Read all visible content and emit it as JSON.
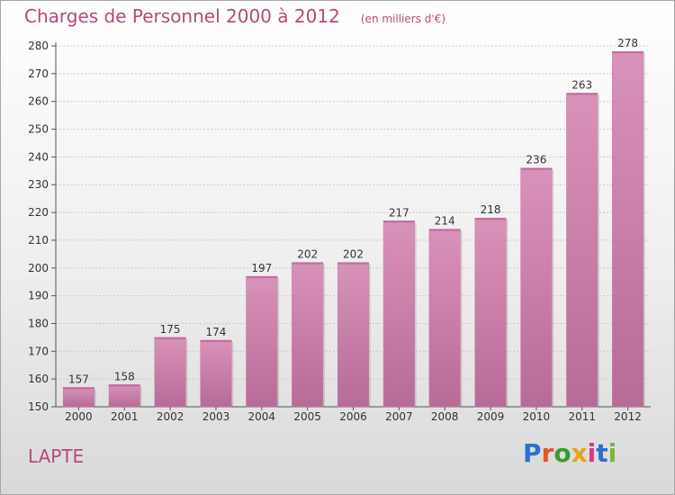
{
  "header": {
    "title": "Charges de Personnel 2000 à 2012",
    "unit": "(en milliers d'€)"
  },
  "footer": {
    "commune": "LAPTE",
    "logo_text": "Proxiti"
  },
  "colors": {
    "bar": "#d992b9",
    "bar_dark": "#b76b97",
    "title": "#b5497c",
    "grid": "#c9c9c9",
    "logo": [
      "#2f6fd0",
      "#e0582a",
      "#3c9a2f",
      "#e4a51a",
      "#d13a8b",
      "#2f6fd0",
      "#7ab53b"
    ]
  },
  "chart_data": {
    "type": "bar",
    "title": "Charges de Personnel 2000 à 2012",
    "xlabel": "",
    "ylabel": "",
    "ylim": [
      150,
      280
    ],
    "yticks": [
      150,
      160,
      170,
      180,
      190,
      200,
      210,
      220,
      230,
      240,
      250,
      260,
      270,
      280
    ],
    "grid": true,
    "categories": [
      "2000",
      "2001",
      "2002",
      "2003",
      "2004",
      "2005",
      "2006",
      "2007",
      "2008",
      "2009",
      "2010",
      "2011",
      "2012"
    ],
    "values": [
      157,
      158,
      175,
      174,
      197,
      202,
      202,
      217,
      214,
      218,
      236,
      263,
      278
    ]
  }
}
